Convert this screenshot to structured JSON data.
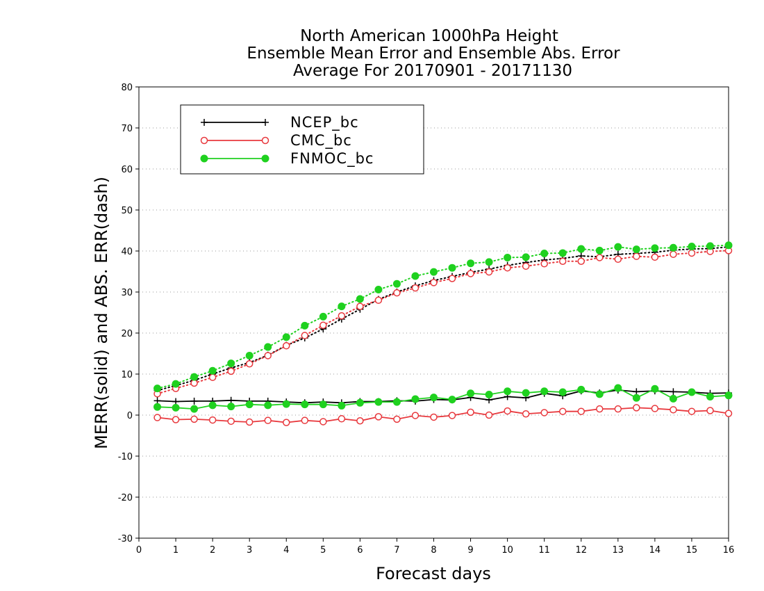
{
  "chart_data": {
    "type": "line",
    "title": [
      "North American 1000hPa Height",
      "Ensemble Mean Error and Ensemble Abs. Error",
      "Average For 20170901 - 20171130"
    ],
    "xlabel": "Forecast days",
    "ylabel": "MERR(solid) and ABS. ERR(dash)",
    "xlim": [
      0,
      16
    ],
    "ylim": [
      -30,
      80
    ],
    "xticks": [
      0,
      1,
      2,
      3,
      4,
      5,
      6,
      7,
      8,
      9,
      10,
      11,
      12,
      13,
      14,
      15,
      16
    ],
    "yticks": [
      -30,
      -20,
      -10,
      0,
      10,
      20,
      30,
      40,
      50,
      60,
      70,
      80
    ],
    "grid": "horizontal dotted",
    "legend_position": "top-left",
    "x": [
      0.5,
      1,
      1.5,
      2,
      2.5,
      3,
      3.5,
      4,
      4.5,
      5,
      5.5,
      6,
      6.5,
      7,
      7.5,
      8,
      8.5,
      9,
      9.5,
      10,
      10.5,
      11,
      11.5,
      12,
      12.5,
      13,
      13.5,
      14,
      14.5,
      15,
      15.5,
      16
    ],
    "series": [
      {
        "name": "NCEP_bc",
        "color": "#000000",
        "marker": "plus",
        "merr": [
          3.5,
          3.3,
          3.4,
          3.4,
          3.6,
          3.4,
          3.4,
          3.2,
          3.0,
          3.2,
          3.0,
          3.3,
          3.3,
          3.5,
          3.4,
          3.8,
          3.7,
          4.3,
          3.7,
          4.5,
          4.2,
          5.3,
          4.7,
          5.9,
          5.4,
          6.1,
          5.7,
          5.9,
          5.7,
          5.6,
          5.3,
          5.4
        ],
        "abs_err": [
          6.0,
          7.2,
          8.5,
          10.0,
          11.5,
          12.8,
          14.6,
          17.0,
          18.8,
          21.0,
          23.4,
          25.8,
          28.2,
          30.0,
          31.5,
          32.8,
          33.8,
          34.8,
          35.6,
          36.5,
          37.2,
          37.8,
          38.2,
          38.8,
          38.6,
          39.2,
          39.4,
          39.7,
          40.2,
          40.5,
          40.6,
          41.0
        ]
      },
      {
        "name": "CMC_bc",
        "color": "#e8383d",
        "marker": "open-circle",
        "merr": [
          -0.6,
          -1.1,
          -1.0,
          -1.2,
          -1.5,
          -1.7,
          -1.3,
          -1.8,
          -1.3,
          -1.6,
          -0.9,
          -1.4,
          -0.4,
          -1.0,
          -0.1,
          -0.5,
          -0.1,
          0.7,
          0.0,
          1.0,
          0.3,
          0.6,
          0.9,
          0.9,
          1.5,
          1.5,
          1.8,
          1.6,
          1.3,
          0.9,
          1.1,
          0.4
        ],
        "abs_err": [
          5.2,
          6.5,
          7.8,
          9.2,
          10.7,
          12.5,
          14.5,
          16.9,
          19.4,
          21.9,
          24.2,
          26.5,
          28.0,
          29.8,
          31.0,
          32.3,
          33.3,
          34.5,
          34.9,
          35.9,
          36.3,
          36.9,
          37.5,
          37.5,
          38.4,
          38.0,
          38.7,
          38.5,
          39.2,
          39.5,
          39.9,
          40.1
        ]
      },
      {
        "name": "FNMOC_bc",
        "color": "#1fd11f",
        "marker": "filled-circle",
        "merr": [
          2.0,
          1.8,
          1.5,
          2.4,
          2.1,
          2.6,
          2.4,
          2.7,
          2.6,
          2.6,
          2.3,
          3.0,
          3.2,
          3.2,
          3.9,
          4.3,
          3.8,
          5.3,
          5.0,
          5.8,
          5.4,
          5.8,
          5.6,
          6.2,
          5.1,
          6.6,
          4.2,
          6.4,
          4.0,
          5.6,
          4.5,
          4.8
        ],
        "abs_err": [
          6.5,
          7.6,
          9.3,
          10.8,
          12.6,
          14.5,
          16.6,
          19.0,
          21.8,
          24.0,
          26.5,
          28.3,
          30.6,
          32.0,
          33.9,
          34.9,
          35.9,
          37.0,
          37.3,
          38.4,
          38.5,
          39.4,
          39.5,
          40.5,
          40.1,
          41.0,
          40.4,
          40.7,
          40.8,
          41.1,
          41.2,
          41.4
        ]
      }
    ]
  }
}
